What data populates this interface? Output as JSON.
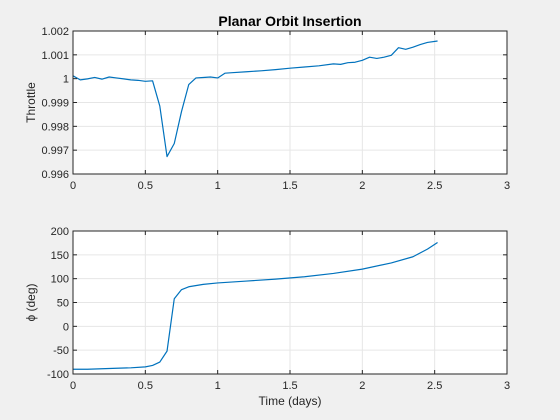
{
  "figure": {
    "background": "#f0f0f0",
    "axes_background": "#ffffff",
    "line_color": "#0072bd",
    "grid_color": "#e6e6e6"
  },
  "chart_data": [
    {
      "type": "line",
      "title": "Planar Orbit Insertion",
      "xlabel": "",
      "ylabel": "Throttle",
      "xlim": [
        0,
        3
      ],
      "ylim": [
        0.996,
        1.002
      ],
      "xticks": [
        0,
        0.5,
        1,
        1.5,
        2,
        2.5,
        3
      ],
      "yticks": [
        0.996,
        0.997,
        0.998,
        0.999,
        1,
        1.001,
        1.002
      ],
      "xtick_labels": [
        "0",
        "0.5",
        "1",
        "1.5",
        "2",
        "2.5",
        "3"
      ],
      "ytick_labels": [
        "0.996",
        "0.997",
        "0.998",
        "0.999",
        "1",
        "1.001",
        "1.002"
      ],
      "grid": true,
      "series": [
        {
          "x": [
            0,
            0.05,
            0.1,
            0.15,
            0.2,
            0.25,
            0.3,
            0.35,
            0.4,
            0.45,
            0.5,
            0.55,
            0.6,
            0.65,
            0.7,
            0.75,
            0.8,
            0.85,
            0.9,
            0.95,
            1.0,
            1.05,
            1.1,
            1.2,
            1.3,
            1.4,
            1.5,
            1.6,
            1.7,
            1.8,
            1.85,
            1.9,
            1.95,
            2.0,
            2.05,
            2.1,
            2.15,
            2.2,
            2.25,
            2.3,
            2.35,
            2.4,
            2.45,
            2.52
          ],
          "y": [
            1.00012,
            0.99995,
            0.99999,
            1.00005,
            0.99998,
            1.00007,
            1.00003,
            0.99999,
            0.99995,
            0.99993,
            0.99989,
            0.99991,
            0.99885,
            0.99673,
            0.99728,
            0.99862,
            0.99975,
            1.00003,
            1.00005,
            1.00007,
            1.00003,
            1.00023,
            1.00025,
            1.00029,
            1.00033,
            1.00038,
            1.00044,
            1.00049,
            1.00054,
            1.00062,
            1.0006,
            1.00067,
            1.00069,
            1.00077,
            1.0009,
            1.00085,
            1.0009,
            1.00098,
            1.0013,
            1.00123,
            1.00132,
            1.00143,
            1.00152,
            1.00158
          ]
        }
      ]
    },
    {
      "type": "line",
      "title": "",
      "xlabel": "Time (days)",
      "ylabel": "ϕ (deg)",
      "xlim": [
        0,
        3
      ],
      "ylim": [
        -100,
        200
      ],
      "xticks": [
        0,
        0.5,
        1,
        1.5,
        2,
        2.5,
        3
      ],
      "yticks": [
        -100,
        -50,
        0,
        50,
        100,
        150,
        200
      ],
      "xtick_labels": [
        "0",
        "0.5",
        "1",
        "1.5",
        "2",
        "2.5",
        "3"
      ],
      "ytick_labels": [
        "-100",
        "-50",
        "0",
        "50",
        "100",
        "150",
        "200"
      ],
      "grid": true,
      "series": [
        {
          "x": [
            0,
            0.1,
            0.2,
            0.3,
            0.4,
            0.5,
            0.55,
            0.6,
            0.65,
            0.7,
            0.75,
            0.8,
            0.9,
            1.0,
            1.2,
            1.4,
            1.6,
            1.8,
            2.0,
            2.2,
            2.35,
            2.45,
            2.52
          ],
          "y": [
            -90,
            -90,
            -89,
            -88,
            -87,
            -85,
            -82,
            -75,
            -52,
            58,
            77,
            83,
            88,
            91,
            95,
            99,
            104,
            111,
            120,
            133,
            146,
            162,
            176
          ]
        }
      ]
    }
  ]
}
